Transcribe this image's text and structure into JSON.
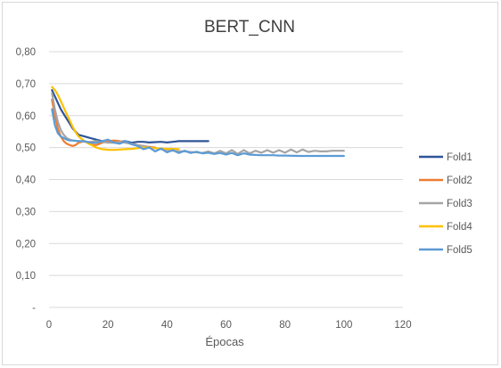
{
  "chart_data": {
    "type": "line",
    "title": "BERT_CNN",
    "xlabel": "Épocas",
    "ylabel": "",
    "xlim": [
      0,
      120
    ],
    "ylim": [
      0,
      0.8
    ],
    "x_ticks": [
      0,
      20,
      40,
      60,
      80,
      100,
      120
    ],
    "x_tick_labels": [
      "0",
      "20",
      "40",
      "60",
      "80",
      "100",
      "120"
    ],
    "y_ticks": [
      0,
      0.1,
      0.2,
      0.3,
      0.4,
      0.5,
      0.6,
      0.7,
      0.8
    ],
    "y_tick_labels": [
      "-",
      "0,10",
      "0,20",
      "0,30",
      "0,40",
      "0,50",
      "0,60",
      "0,70",
      "0,80"
    ],
    "grid": true,
    "legend_position": "right",
    "series": [
      {
        "name": "Fold1",
        "color": "#2f5597",
        "x": [
          1,
          2,
          3,
          4,
          5,
          6,
          7,
          8,
          9,
          10,
          12,
          14,
          16,
          18,
          20,
          22,
          24,
          26,
          28,
          30,
          32,
          34,
          36,
          38,
          40,
          42,
          44,
          46,
          48,
          50,
          52,
          54
        ],
        "y": [
          0.68,
          0.66,
          0.64,
          0.62,
          0.605,
          0.59,
          0.575,
          0.56,
          0.55,
          0.54,
          0.535,
          0.53,
          0.525,
          0.52,
          0.52,
          0.52,
          0.518,
          0.52,
          0.515,
          0.518,
          0.518,
          0.516,
          0.517,
          0.518,
          0.516,
          0.518,
          0.52,
          0.52,
          0.52,
          0.52,
          0.52,
          0.52
        ]
      },
      {
        "name": "Fold2",
        "color": "#ed7d31",
        "x": [
          1,
          2,
          3,
          4,
          5,
          6,
          7,
          8,
          9,
          10,
          12,
          14,
          16,
          18,
          20,
          22,
          24,
          26,
          28,
          30,
          32,
          34,
          36
        ],
        "y": [
          0.65,
          0.6,
          0.56,
          0.535,
          0.52,
          0.512,
          0.508,
          0.505,
          0.508,
          0.515,
          0.52,
          0.51,
          0.508,
          0.515,
          0.52,
          0.522,
          0.52,
          0.515,
          0.512,
          0.508,
          0.505,
          0.502,
          0.5
        ]
      },
      {
        "name": "Fold3",
        "color": "#a5a5a5",
        "x": [
          1,
          2,
          3,
          4,
          5,
          6,
          7,
          8,
          10,
          12,
          14,
          16,
          18,
          20,
          22,
          24,
          26,
          28,
          30,
          32,
          34,
          36,
          38,
          40,
          42,
          44,
          46,
          48,
          50,
          52,
          54,
          56,
          58,
          60,
          62,
          64,
          66,
          68,
          70,
          72,
          74,
          76,
          78,
          80,
          82,
          84,
          86,
          88,
          90,
          92,
          94,
          96,
          98,
          100
        ],
        "y": [
          0.67,
          0.62,
          0.58,
          0.555,
          0.54,
          0.53,
          0.525,
          0.522,
          0.52,
          0.518,
          0.518,
          0.52,
          0.518,
          0.515,
          0.515,
          0.518,
          0.515,
          0.512,
          0.508,
          0.505,
          0.5,
          0.498,
          0.495,
          0.492,
          0.49,
          0.488,
          0.488,
          0.486,
          0.485,
          0.483,
          0.488,
          0.482,
          0.49,
          0.482,
          0.492,
          0.48,
          0.492,
          0.482,
          0.49,
          0.484,
          0.492,
          0.484,
          0.492,
          0.484,
          0.494,
          0.485,
          0.494,
          0.486,
          0.49,
          0.488,
          0.488,
          0.49,
          0.49,
          0.49
        ]
      },
      {
        "name": "Fold4",
        "color": "#ffc000",
        "x": [
          1,
          2,
          3,
          4,
          5,
          6,
          7,
          8,
          9,
          10,
          12,
          14,
          16,
          18,
          20,
          22,
          24,
          26,
          28,
          30,
          32,
          34,
          36,
          38,
          40,
          42,
          44
        ],
        "y": [
          0.69,
          0.68,
          0.665,
          0.645,
          0.625,
          0.605,
          0.585,
          0.565,
          0.548,
          0.535,
          0.52,
          0.51,
          0.5,
          0.495,
          0.493,
          0.493,
          0.494,
          0.495,
          0.496,
          0.498,
          0.5,
          0.5,
          0.498,
          0.497,
          0.496,
          0.496,
          0.495
        ]
      },
      {
        "name": "Fold5",
        "color": "#5b9bd5",
        "x": [
          1,
          2,
          3,
          4,
          5,
          6,
          7,
          8,
          10,
          12,
          14,
          16,
          18,
          20,
          22,
          24,
          26,
          28,
          30,
          32,
          34,
          36,
          38,
          40,
          42,
          44,
          46,
          48,
          50,
          52,
          54,
          56,
          58,
          60,
          62,
          64,
          66,
          68,
          70,
          72,
          74,
          76,
          78,
          80,
          85,
          90,
          95,
          100
        ],
        "y": [
          0.62,
          0.57,
          0.545,
          0.535,
          0.53,
          0.525,
          0.522,
          0.522,
          0.52,
          0.52,
          0.515,
          0.515,
          0.52,
          0.525,
          0.515,
          0.512,
          0.52,
          0.51,
          0.505,
          0.495,
          0.5,
          0.488,
          0.497,
          0.485,
          0.492,
          0.483,
          0.49,
          0.483,
          0.487,
          0.482,
          0.484,
          0.48,
          0.483,
          0.478,
          0.483,
          0.476,
          0.482,
          0.478,
          0.477,
          0.476,
          0.476,
          0.476,
          0.475,
          0.475,
          0.474,
          0.474,
          0.474,
          0.474
        ]
      }
    ]
  }
}
